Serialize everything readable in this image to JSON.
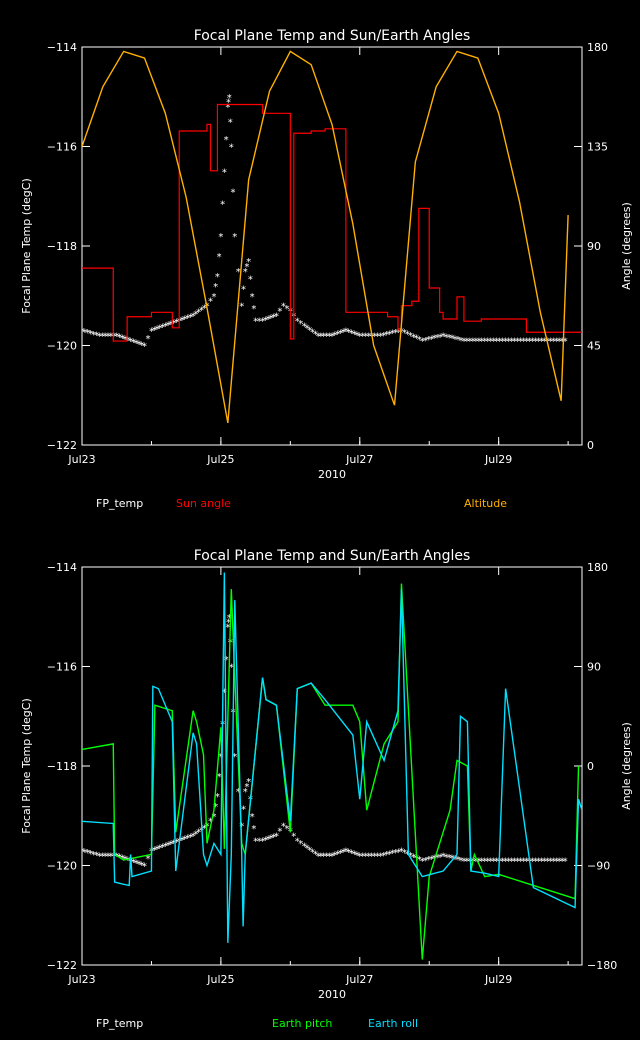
{
  "chart_data": [
    {
      "type": "line",
      "title": "Focal Plane Temp and Sun/Earth Angles",
      "xlabel": "2010",
      "ylabel_left": "Focal Plane Temp (degC)",
      "ylabel_right": "Angle (degrees)",
      "xlim": [
        0,
        7.2
      ],
      "ylim_left": [
        -122,
        -114
      ],
      "ylim_right": [
        0,
        180
      ],
      "x_ticks": [
        {
          "x": 0,
          "label": "Jul23"
        },
        {
          "x": 2,
          "label": "Jul25"
        },
        {
          "x": 4,
          "label": "Jul27"
        },
        {
          "x": 6,
          "label": "Jul29"
        }
      ],
      "y_ticks_left": [
        -122,
        -120,
        -118,
        -116,
        -114
      ],
      "y_ticks_right": [
        0,
        45,
        90,
        135,
        180
      ],
      "grid": false,
      "series": [
        {
          "name": "FP_temp",
          "axis": "left",
          "color": "#ffffff",
          "style": "markers",
          "x": [
            0,
            0.25,
            0.5,
            0.7,
            0.9,
            1.0,
            1.2,
            1.4,
            1.6,
            1.8,
            1.9,
            1.95,
            2.0,
            2.05,
            2.1,
            2.12,
            2.15,
            2.2,
            2.3,
            2.35,
            2.4,
            2.45,
            2.5,
            2.6,
            2.8,
            2.9,
            3.0,
            3.1,
            3.2,
            3.4,
            3.6,
            3.8,
            4.0,
            4.3,
            4.6,
            4.9,
            5.2,
            5.5,
            5.8,
            6.1,
            6.4,
            6.7,
            7.0
          ],
          "y": [
            -119.7,
            -119.8,
            -119.8,
            -119.9,
            -120.0,
            -119.7,
            -119.6,
            -119.5,
            -119.4,
            -119.2,
            -119.0,
            -118.6,
            -117.8,
            -116.5,
            -115.2,
            -115.0,
            -116.0,
            -117.8,
            -119.2,
            -118.5,
            -118.3,
            -119.0,
            -119.5,
            -119.5,
            -119.4,
            -119.2,
            -119.3,
            -119.5,
            -119.6,
            -119.8,
            -119.8,
            -119.7,
            -119.8,
            -119.8,
            -119.7,
            -119.9,
            -119.8,
            -119.9,
            -119.9,
            -119.9,
            -119.9,
            -119.9,
            -119.9
          ]
        },
        {
          "name": "Sun angle",
          "axis": "right",
          "color": "#ff0000",
          "style": "step",
          "x": [
            0,
            0.45,
            0.65,
            1.0,
            1.3,
            1.4,
            1.8,
            1.85,
            1.95,
            2.6,
            3.0,
            3.05,
            3.3,
            3.5,
            3.8,
            4.4,
            4.55,
            4.6,
            4.75,
            4.85,
            5.0,
            5.15,
            5.2,
            5.4,
            5.5,
            5.75,
            6.4,
            7.0
          ],
          "y": [
            80,
            47,
            58,
            60,
            53,
            142,
            145,
            124,
            154,
            150,
            48,
            141,
            142,
            143,
            60,
            58,
            52,
            63,
            65,
            107,
            71,
            60,
            57,
            67,
            56,
            57,
            51,
            51
          ]
        },
        {
          "name": "Altitude",
          "axis": "right",
          "color": "#ffb000",
          "style": "line",
          "x": [
            0,
            0.3,
            0.6,
            0.9,
            1.2,
            1.5,
            1.8,
            2.1,
            2.4,
            2.7,
            3.0,
            3.3,
            3.6,
            3.9,
            4.2,
            4.5,
            4.8,
            5.1,
            5.4,
            5.7,
            6.0,
            6.3,
            6.6,
            6.9,
            7.0
          ],
          "y": [
            135,
            162,
            178,
            175,
            150,
            112,
            62,
            10,
            120,
            160,
            178,
            172,
            145,
            100,
            45,
            18,
            128,
            162,
            178,
            175,
            150,
            110,
            60,
            20,
            104
          ]
        }
      ],
      "legend": [
        {
          "label": "FP_temp",
          "color": "#ffffff"
        },
        {
          "label": "Sun angle",
          "color": "#ff0000"
        },
        {
          "label": "Altitude",
          "color": "#ffb000"
        }
      ]
    },
    {
      "type": "line",
      "title": "Focal Plane Temp and Sun/Earth Angles",
      "xlabel": "2010",
      "ylabel_left": "Focal Plane Temp (degC)",
      "ylabel_right": "Angle (degrees)",
      "xlim": [
        0,
        7.2
      ],
      "ylim_left": [
        -122,
        -114
      ],
      "ylim_right": [
        -180,
        180
      ],
      "x_ticks": [
        {
          "x": 0,
          "label": "Jul23"
        },
        {
          "x": 2,
          "label": "Jul25"
        },
        {
          "x": 4,
          "label": "Jul27"
        },
        {
          "x": 6,
          "label": "Jul29"
        }
      ],
      "y_ticks_left": [
        -122,
        -120,
        -118,
        -116,
        -114
      ],
      "y_ticks_right": [
        -180,
        -90,
        0,
        90,
        180
      ],
      "grid": false,
      "series": [
        {
          "name": "FP_temp",
          "axis": "left",
          "color": "#ffffff",
          "style": "markers",
          "x": [
            0,
            0.25,
            0.5,
            0.7,
            0.9,
            1.0,
            1.2,
            1.4,
            1.6,
            1.8,
            1.9,
            1.95,
            2.0,
            2.05,
            2.1,
            2.12,
            2.15,
            2.2,
            2.3,
            2.35,
            2.4,
            2.45,
            2.5,
            2.6,
            2.8,
            2.9,
            3.0,
            3.1,
            3.2,
            3.4,
            3.6,
            3.8,
            4.0,
            4.3,
            4.6,
            4.9,
            5.2,
            5.5,
            5.8,
            6.1,
            6.4,
            6.7,
            7.0
          ],
          "y": [
            -119.7,
            -119.8,
            -119.8,
            -119.9,
            -120.0,
            -119.7,
            -119.6,
            -119.5,
            -119.4,
            -119.2,
            -119.0,
            -118.6,
            -117.8,
            -116.5,
            -115.2,
            -115.0,
            -116.0,
            -117.8,
            -119.2,
            -118.5,
            -118.3,
            -119.0,
            -119.5,
            -119.5,
            -119.4,
            -119.2,
            -119.3,
            -119.5,
            -119.6,
            -119.8,
            -119.8,
            -119.7,
            -119.8,
            -119.8,
            -119.7,
            -119.9,
            -119.8,
            -119.9,
            -119.9,
            -119.9,
            -119.9,
            -119.9,
            -119.9
          ]
        },
        {
          "name": "Earth pitch",
          "axis": "right",
          "color": "#00ff00",
          "style": "line",
          "x": [
            0,
            0.45,
            0.47,
            0.6,
            1.0,
            1.05,
            1.3,
            1.35,
            1.6,
            1.65,
            1.75,
            1.8,
            1.9,
            2.0,
            2.05,
            2.15,
            2.2,
            2.3,
            2.35,
            2.6,
            2.65,
            2.8,
            3.0,
            3.1,
            3.3,
            3.5,
            3.9,
            4.0,
            4.1,
            4.35,
            4.55,
            4.6,
            4.9,
            5.0,
            5.1,
            5.2,
            5.3,
            5.4,
            5.55,
            5.6,
            5.65,
            5.8,
            6.0,
            6.5,
            7.0,
            7.1,
            7.15
          ],
          "y": [
            15,
            20,
            -80,
            -85,
            -80,
            55,
            50,
            -60,
            50,
            40,
            10,
            -70,
            -40,
            35,
            -75,
            160,
            80,
            -70,
            -80,
            80,
            60,
            55,
            -60,
            70,
            75,
            55,
            55,
            40,
            -40,
            20,
            40,
            165,
            -175,
            -100,
            -80,
            -60,
            -40,
            5,
            0,
            -95,
            -80,
            -100,
            -98,
            -108,
            -118,
            -120,
            0
          ]
        },
        {
          "name": "Earth roll",
          "axis": "right",
          "color": "#00e0ff",
          "style": "line",
          "x": [
            0,
            0.45,
            0.47,
            0.6,
            0.68,
            0.7,
            0.72,
            1.0,
            1.02,
            1.1,
            1.3,
            1.35,
            1.6,
            1.65,
            1.75,
            1.8,
            1.9,
            2.0,
            2.05,
            2.1,
            2.15,
            2.2,
            2.3,
            2.32,
            2.35,
            2.6,
            2.65,
            2.8,
            3.0,
            3.1,
            3.3,
            3.5,
            3.9,
            4.0,
            4.1,
            4.35,
            4.55,
            4.6,
            4.7,
            4.8,
            4.9,
            5.2,
            5.4,
            5.45,
            5.55,
            5.6,
            5.8,
            6.0,
            6.1,
            6.5,
            7.0,
            7.1,
            7.15,
            7.2
          ],
          "y": [
            -50,
            -52,
            -105,
            -107,
            -108,
            -80,
            -100,
            -95,
            72,
            70,
            40,
            -95,
            30,
            20,
            -80,
            -90,
            -70,
            -80,
            175,
            -160,
            -80,
            150,
            -80,
            -145,
            -80,
            80,
            60,
            55,
            -50,
            70,
            75,
            60,
            28,
            -30,
            40,
            5,
            50,
            160,
            -80,
            -90,
            -100,
            -95,
            -80,
            45,
            40,
            -95,
            -97,
            -100,
            70,
            -110,
            -125,
            -128,
            -30,
            -40
          ]
        }
      ],
      "legend": [
        {
          "label": "FP_temp",
          "color": "#ffffff"
        },
        {
          "label": "Earth pitch",
          "color": "#00ff00"
        },
        {
          "label": "Earth roll",
          "color": "#00e0ff"
        }
      ]
    }
  ]
}
